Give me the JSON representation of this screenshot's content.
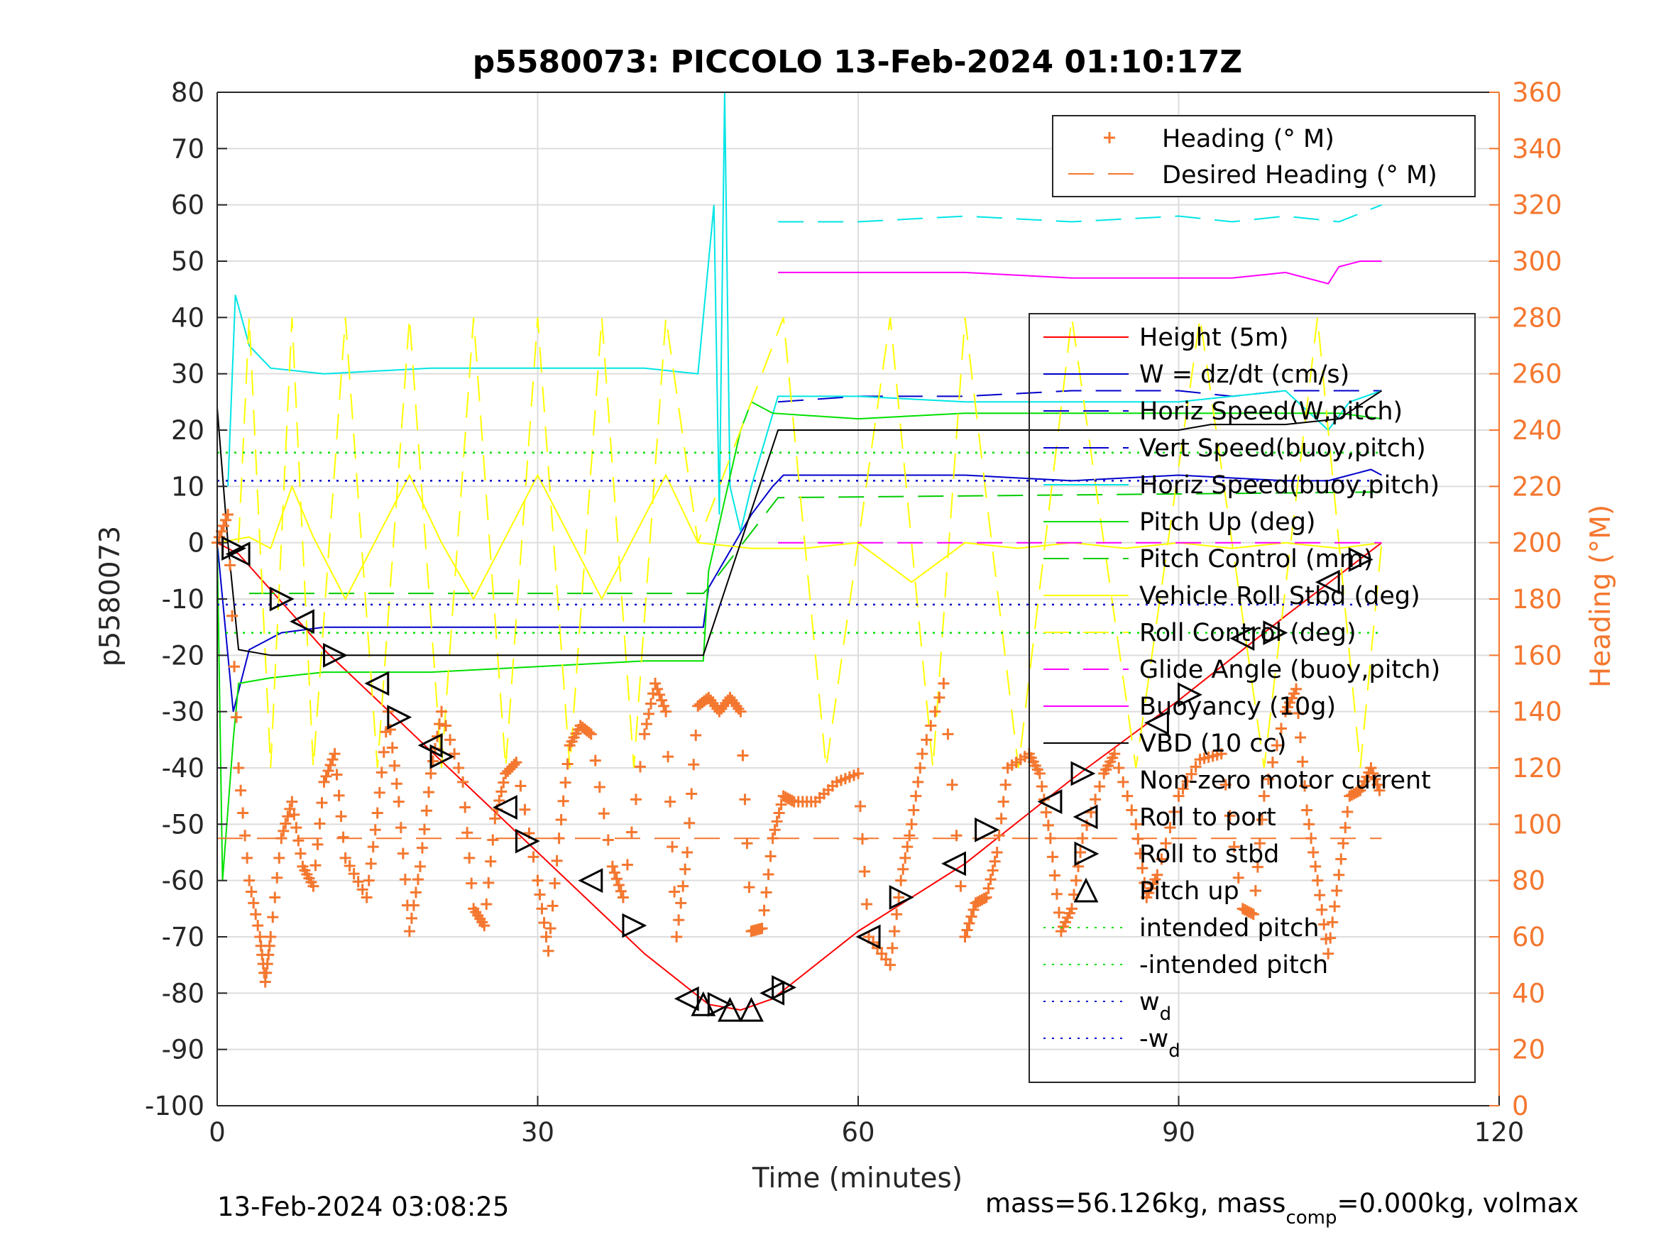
{
  "chart_data": {
    "type": "line",
    "title": "p5580073: PICCOLO 13-Feb-2024 01:10:17Z",
    "xlabel": "Time (minutes)",
    "ylabel": "p5580073",
    "y2label": "Heading (°M)",
    "xlim": [
      0,
      120
    ],
    "ylim": [
      -100,
      80
    ],
    "y2lim": [
      0,
      360
    ],
    "xticks": [
      "0",
      "30",
      "60",
      "90",
      "120"
    ],
    "yticks": [
      "-100",
      "-90",
      "-80",
      "-70",
      "-60",
      "-50",
      "-40",
      "-30",
      "-20",
      "-10",
      "0",
      "10",
      "20",
      "30",
      "40",
      "50",
      "60",
      "70",
      "80"
    ],
    "y2ticks": [
      "0",
      "20",
      "40",
      "60",
      "80",
      "100",
      "120",
      "140",
      "160",
      "180",
      "200",
      "220",
      "240",
      "260",
      "280",
      "300",
      "320",
      "340",
      "360"
    ],
    "grid": true,
    "legend_top": {
      "placement": "top-right",
      "entries": [
        "Heading (° M)",
        "Desired Heading (° M)"
      ]
    },
    "legend_main": {
      "placement": "right",
      "entries": [
        "Height (5m)",
        "W = dz/dt (cm/s)",
        "Horiz Speed(W,pitch)",
        "Vert Speed(buoy,pitch)",
        "Horiz Speed(buoy,pitch)",
        "Pitch Up (deg)",
        "Pitch Control (mm)",
        "Vehicle Roll Stbd (deg)",
        "Roll Control (deg)",
        "Glide Angle (buoy,pitch)",
        "Buoyancy (10g)",
        "VBD (10 cc)",
        "Non-zero motor current",
        "Roll to port",
        "Roll to stbd",
        "Pitch up",
        "intended pitch",
        "-intended pitch",
        "w_d",
        "-w_d"
      ]
    },
    "series": [
      {
        "name": "Height (5m)",
        "color": "#ff0000",
        "x": [
          0,
          2,
          10,
          20,
          30,
          40,
          46,
          49,
          52,
          60,
          70,
          80,
          90,
          100,
          109
        ],
        "y": [
          0,
          -2,
          -19,
          -37,
          -55,
          -73,
          -82,
          -83,
          -81,
          -69,
          -57,
          -42,
          -28,
          -13,
          0
        ]
      },
      {
        "name": "W = dz/dt (cm/s)",
        "color": "#0000cc",
        "x": [
          0,
          1.5,
          3,
          6,
          10,
          20,
          30,
          40,
          45.5,
          46,
          50,
          52,
          53,
          60,
          70,
          80,
          90,
          100,
          104,
          108,
          109
        ],
        "y": [
          0,
          -30,
          -19,
          -16,
          -15,
          -15,
          -15,
          -15,
          -15,
          -8,
          5,
          10,
          12,
          12,
          12,
          11,
          12,
          11,
          11,
          13,
          12
        ]
      },
      {
        "name": "Horiz Speed(W,pitch)",
        "color": "#0000cc",
        "dashed": true,
        "x": [
          52.5,
          60,
          70,
          80,
          90,
          95,
          100,
          105,
          109
        ],
        "y": [
          25,
          26,
          26,
          27,
          27,
          26,
          27,
          27,
          27
        ]
      },
      {
        "name": "Horiz Speed(buoy,pitch)",
        "color": "#00e5e5",
        "x": [
          1,
          1.7,
          3,
          5,
          10,
          20,
          30,
          40,
          45,
          46.5,
          47,
          47.5,
          48,
          49,
          50,
          52.5,
          60,
          70,
          80,
          90,
          100,
          104,
          106,
          109
        ],
        "y": [
          10,
          44,
          35,
          31,
          30,
          31,
          31,
          31,
          30,
          60,
          5,
          80,
          10,
          2,
          10,
          26,
          26,
          25,
          25,
          25,
          27,
          20,
          25,
          27
        ]
      },
      {
        "name": "Vert Speed(buoy,pitch)",
        "color": "#00e5e5",
        "dashed": true,
        "x": [
          52.5,
          60,
          70,
          80,
          90,
          95,
          100,
          105,
          109
        ],
        "y": [
          57,
          57,
          58,
          57,
          58,
          57,
          58,
          57,
          60
        ]
      },
      {
        "name": "Pitch Up (deg)",
        "color": "#00e000",
        "x": [
          0,
          0.5,
          1.5,
          2,
          5,
          10,
          20,
          30,
          40,
          45.5,
          46,
          49,
          50,
          52,
          60,
          70,
          80,
          90,
          100,
          105,
          109
        ],
        "y": [
          0,
          -60,
          -35,
          -25,
          -24,
          -23,
          -23,
          -22,
          -21,
          -21,
          -5,
          20,
          25,
          23,
          22,
          23,
          23,
          23,
          23,
          23,
          22
        ]
      },
      {
        "name": "Pitch Control (mm)",
        "color": "#00cc00",
        "dashed": true,
        "x": [
          3,
          45.5,
          46,
          52.5,
          109
        ],
        "y": [
          -9,
          -9,
          -8,
          8,
          9
        ]
      },
      {
        "name": "Vehicle Roll Stbd (deg)",
        "color": "#ffff00",
        "x": [
          0,
          3,
          5,
          7,
          9,
          12,
          15,
          18,
          21,
          24,
          27,
          30,
          33,
          36,
          39,
          42,
          45,
          50,
          55,
          60,
          65,
          70,
          75,
          80,
          85,
          90,
          95,
          100,
          105,
          109
        ],
        "y": [
          0,
          1,
          -1,
          10,
          1,
          -10,
          1,
          12,
          0,
          -10,
          1,
          12,
          1,
          -10,
          1,
          12,
          0,
          -1,
          -1,
          0,
          -7,
          0,
          -1,
          0,
          -1,
          0,
          -1,
          0,
          -1,
          0
        ]
      },
      {
        "name": "Roll Control (deg)",
        "color": "#ffff00",
        "dashed": true,
        "x": [
          2,
          3,
          5,
          7,
          9,
          12,
          15,
          18,
          21,
          24,
          27,
          30,
          33,
          36,
          39,
          42,
          45,
          53,
          57,
          63,
          67,
          70,
          75,
          80,
          86,
          92,
          98,
          103,
          107,
          109
        ],
        "y": [
          0,
          40,
          -40,
          40,
          -40,
          40,
          -40,
          40,
          -40,
          40,
          -40,
          40,
          -40,
          40,
          -40,
          40,
          0,
          40,
          -40,
          40,
          -40,
          40,
          -40,
          40,
          -40,
          40,
          -40,
          40,
          -40,
          0
        ]
      },
      {
        "name": "Glide Angle (buoy,pitch)",
        "color": "#ff00ff",
        "dashed": true,
        "x": [
          52.5,
          109
        ],
        "y": [
          0,
          0
        ]
      },
      {
        "name": "Buoyancy (10g)",
        "color": "#ff00ff",
        "x": [
          52.5,
          60,
          70,
          80,
          90,
          95,
          100,
          104,
          105,
          107,
          109
        ],
        "y": [
          48,
          48,
          48,
          47,
          47,
          47,
          48,
          46,
          49,
          50,
          50
        ]
      },
      {
        "name": "VBD (10 cc)",
        "color": "#000000",
        "x": [
          0,
          1,
          2,
          5,
          10,
          20,
          30,
          40,
          45.5,
          52.5,
          60,
          70,
          80,
          90,
          93,
          100,
          105,
          109
        ],
        "y": [
          24,
          0,
          -19,
          -20,
          -20,
          -20,
          -20,
          -20,
          -20,
          20,
          20,
          20,
          20,
          20,
          21,
          21,
          22,
          27
        ]
      },
      {
        "name": "intended pitch",
        "color": "#00e000",
        "dotted": true,
        "x": [
          0,
          109
        ],
        "y": [
          16,
          16
        ]
      },
      {
        "name": "-intended pitch",
        "color": "#00e000",
        "dotted": true,
        "x": [
          0,
          109
        ],
        "y": [
          -16,
          -16
        ]
      },
      {
        "name": "w_d",
        "color": "#0000cc",
        "dotted": true,
        "x": [
          0,
          109
        ],
        "y": [
          11,
          11
        ]
      },
      {
        "name": "-w_d",
        "color": "#0000cc",
        "dotted": true,
        "x": [
          0,
          109
        ],
        "y": [
          -11,
          -11
        ]
      }
    ],
    "heading": {
      "name": "Heading (° M)",
      "color": "#f4772f",
      "x": [
        0,
        1,
        2,
        3,
        4,
        4.5,
        5,
        6,
        7,
        8,
        9,
        10,
        11,
        12,
        14,
        15,
        16,
        17,
        18,
        19,
        20,
        21,
        23,
        24,
        25,
        26,
        27,
        28,
        30,
        31,
        32,
        33,
        34,
        35,
        37,
        38,
        40,
        41,
        42,
        43,
        44,
        45,
        46,
        47,
        48,
        49,
        50,
        51,
        52,
        53,
        54,
        56,
        58,
        60,
        61,
        63,
        64,
        65,
        66,
        68,
        70,
        71,
        72,
        73,
        74,
        76,
        77,
        78,
        79,
        80,
        81,
        83,
        84,
        86,
        87,
        88,
        90,
        92,
        94,
        96,
        97,
        98,
        100,
        101,
        102,
        103,
        104,
        105,
        106,
        107,
        108,
        109
      ],
      "y": [
        200,
        210,
        120,
        80,
        60,
        44,
        60,
        95,
        108,
        85,
        78,
        115,
        125,
        88,
        74,
        104,
        140,
        108,
        62,
        85,
        118,
        140,
        115,
        70,
        64,
        102,
        118,
        122,
        80,
        55,
        95,
        128,
        135,
        132,
        85,
        74,
        132,
        150,
        140,
        60,
        90,
        142,
        145,
        140,
        145,
        140,
        62,
        63,
        95,
        110,
        108,
        108,
        115,
        118,
        60,
        50,
        80,
        100,
        125,
        150,
        60,
        72,
        74,
        90,
        120,
        125,
        118,
        95,
        62,
        70,
        95,
        118,
        125,
        100,
        74,
        82,
        110,
        123,
        125,
        70,
        68,
        110,
        140,
        148,
        105,
        80,
        54,
        82,
        110,
        112,
        120,
        110
      ]
    },
    "desired_heading": {
      "name": "Desired Heading (° M)",
      "color": "#f4772f",
      "x": [
        0,
        109
      ],
      "y": [
        95,
        95
      ]
    },
    "markers": {
      "roll_to_port": {
        "name": "Roll to port",
        "x": [
          2,
          8,
          15,
          20,
          27,
          35,
          44,
          52,
          61,
          69,
          78,
          88,
          96,
          104
        ],
        "y": [
          -2,
          -14,
          -25,
          -36,
          -47,
          -60,
          -81,
          -80,
          -70,
          -57,
          -46,
          -32,
          -17,
          -7
        ]
      },
      "roll_to_stbd": {
        "name": "Roll to stbd",
        "x": [
          1.5,
          6,
          11,
          17,
          21,
          29,
          39,
          47,
          53,
          64,
          72,
          81,
          91,
          99,
          107
        ],
        "y": [
          -1,
          -10,
          -20,
          -31,
          -38,
          -53,
          -68,
          -82,
          -79,
          -63,
          -51,
          -41,
          -27,
          -16,
          -3
        ]
      },
      "pitch_up": {
        "name": "Pitch up",
        "x": [
          45.5,
          48,
          50
        ],
        "y": [
          -82,
          -83,
          -83
        ]
      }
    }
  },
  "footer": {
    "left": "13-Feb-2024 03:08:25",
    "right_pre": "mass=56.126kg, mass",
    "right_sub": "comp",
    "right_post": "=0.000kg, volmax"
  }
}
